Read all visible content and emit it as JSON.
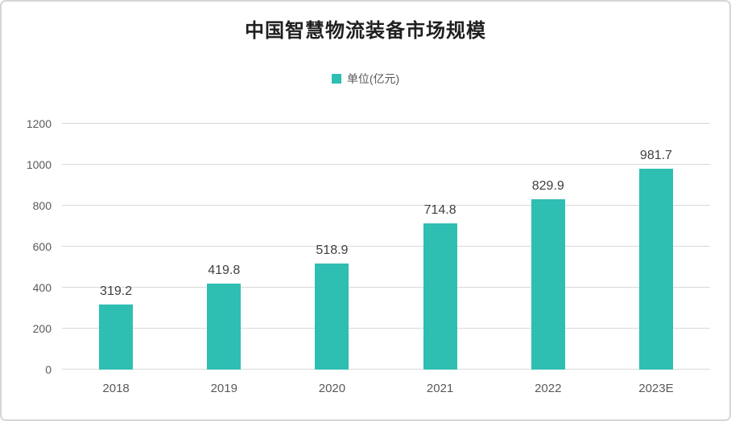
{
  "title": "中国智慧物流装备市场规模",
  "legend": {
    "label": "单位(亿元)"
  },
  "colors": {
    "bar": "#2FBEB2",
    "gridline": "#D9D9D9",
    "tick_label": "#595959",
    "data_label": "#404040",
    "title": "#1F1F1F",
    "card_border": "#D6D6D6"
  },
  "chart_data": {
    "type": "bar",
    "title": "中国智慧物流装备市场规模",
    "legend_entries": [
      "单位(亿元)"
    ],
    "legend_position": "top-center",
    "categories": [
      "2018",
      "2019",
      "2020",
      "2021",
      "2022",
      "2023E"
    ],
    "values": [
      319.2,
      419.8,
      518.9,
      714.8,
      829.9,
      981.7
    ],
    "data_labels": [
      "319.2",
      "419.8",
      "518.9",
      "714.8",
      "829.9",
      "981.7"
    ],
    "xlabel": "",
    "ylabel": "",
    "ylim": [
      0,
      1200
    ],
    "yticks": [
      0,
      200,
      400,
      600,
      800,
      1000,
      1200
    ],
    "grid": true,
    "bar_color": "#2FBEB2"
  }
}
